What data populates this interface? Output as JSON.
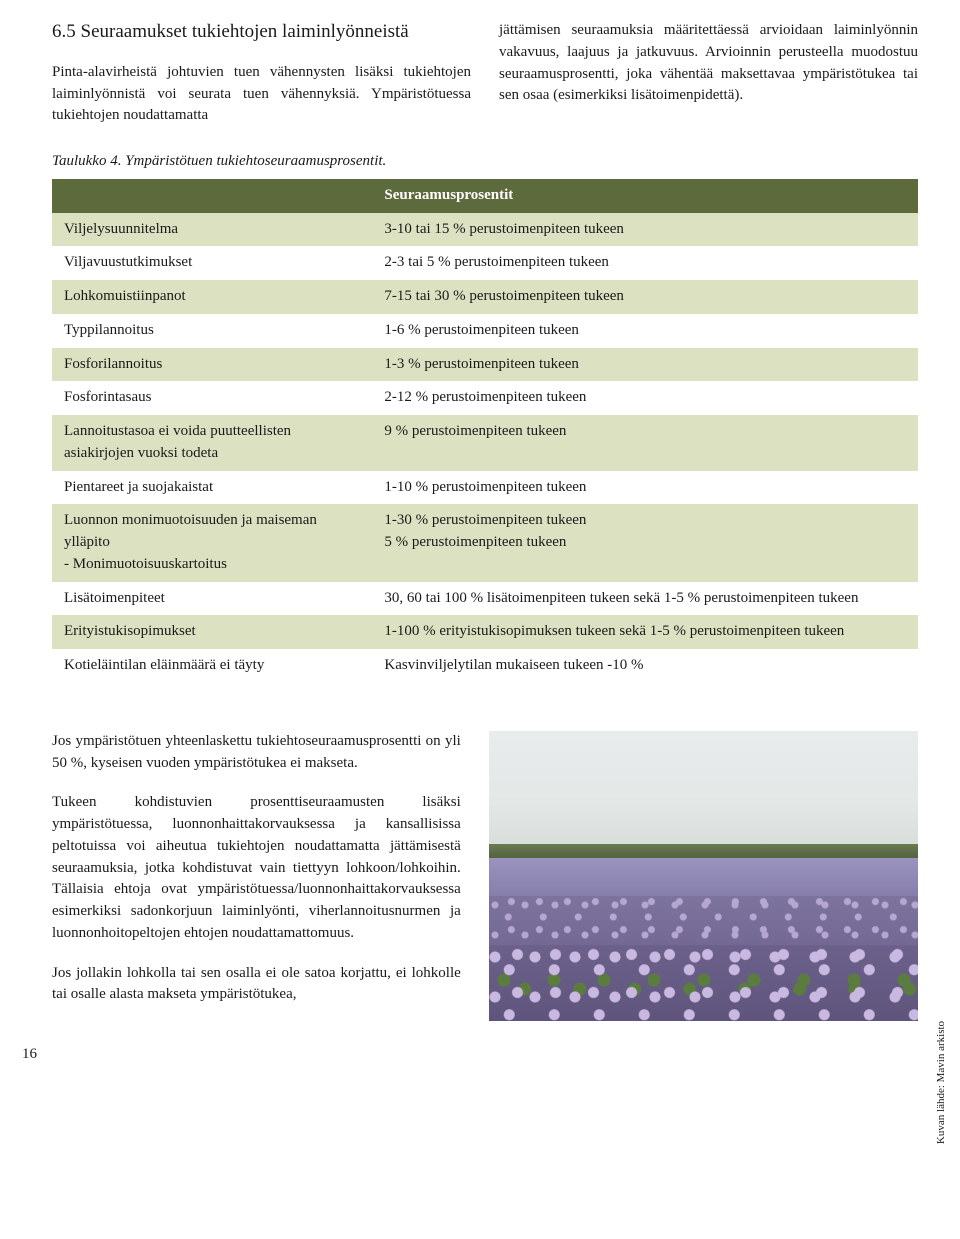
{
  "heading": "6.5 Seuraamukset tukiehtojen laiminlyönneistä",
  "intro_left": "Pinta-alavirheistä johtuvien tuen vähennysten lisäksi tukiehtojen laiminlyönnistä voi seurata tuen vähennyksiä. Ympäristötuessa tukiehtojen noudattamatta",
  "intro_right": "jättämisen seuraamuksia määritettäessä arvioidaan laiminlyönnin vakavuus, laajuus ja jatkuvuus. Arvioinnin perusteella muodostuu seuraamusprosentti, joka vähentää maksettavaa ympäristötukea tai sen osaa (esimerkiksi lisätoimenpidettä).",
  "table_caption": "Taulukko 4. Ympäristötuen tukiehtoseuraamusprosentit.",
  "table": {
    "header_blank": "",
    "header_right": "Seuraamusprosentit",
    "row_bg_odd": "#dce2c1",
    "row_bg_even": "#ffffff",
    "header_bg": "#5d6a3b",
    "header_color": "#ffffff",
    "rows": [
      {
        "left": "Viljelysuunnitelma",
        "right": "3-10 tai 15 % perustoimenpiteen tukeen"
      },
      {
        "left": "Viljavuustutkimukset",
        "right": "2-3 tai 5 % perustoimenpiteen tukeen"
      },
      {
        "left": "Lohkomuistiinpanot",
        "right": "7-15 tai 30 % perustoimenpiteen tukeen"
      },
      {
        "left": "Typpilannoitus",
        "right": "1-6 % perustoimenpiteen tukeen"
      },
      {
        "left": "Fosforilannoitus",
        "right": "1-3 % perustoimenpiteen tukeen"
      },
      {
        "left": "Fosforintasaus",
        "right": "2-12 % perustoimenpiteen tukeen"
      },
      {
        "left": "Lannoitustasoa ei voida puutteellisten asiakirjojen vuoksi todeta",
        "right": "9 % perustoimenpiteen tukeen"
      },
      {
        "left": "Pientareet ja suojakaistat",
        "right": "1-10 % perustoimenpiteen tukeen"
      },
      {
        "left": "Luonnon monimuotoisuuden ja maiseman ylläpito\n  - Monimuotoisuuskartoitus",
        "right": "1-30 % perustoimenpiteen tukeen\n5 % perustoimenpiteen tukeen"
      },
      {
        "left": "Lisätoimenpiteet",
        "right": "30, 60 tai 100 % lisätoimenpiteen tukeen sekä 1-5 % perustoimenpiteen tukeen"
      },
      {
        "left": "Erityistukisopimukset",
        "right": "1-100 % erityistukisopimuksen tukeen sekä 1-5 % perustoimenpiteen tukeen"
      },
      {
        "left": "Kotieläintilan eläinmäärä ei täyty",
        "right": "Kasvinviljelytilan mukaiseen tukeen -10 %"
      }
    ]
  },
  "lower_p1": "Jos ympäristötuen yhteenlaskettu tukiehtoseuraamusprosentti on yli 50 %, kyseisen vuoden ympäristötukea ei makseta.",
  "lower_p2": "Tukeen kohdistuvien prosenttiseuraamusten lisäksi ympäristötuessa, luonnonhaittakorvauksessa ja kansallisissa peltotuissa voi aiheutua tukiehtojen noudattamatta jättämisestä seuraamuksia, jotka kohdistuvat vain tiettyyn lohkoon/lohkoihin. Tällaisia ehtoja ovat ympäristötuessa/luonnonhaittakorvauksessa esimerkiksi sadonkorjuun laiminlyönti, viherlannoitusnurmen ja luonnonhoitopeltojen ehtojen noudattamattomuus.",
  "lower_p3": "Jos jollakin lohkolla tai sen osalla ei ole satoa korjattu, ei lohkolle tai osalle alasta makseta ympäristötukea,",
  "photo_credit": "Kuvan lähde: Mavin arkisto",
  "page_number": "16"
}
